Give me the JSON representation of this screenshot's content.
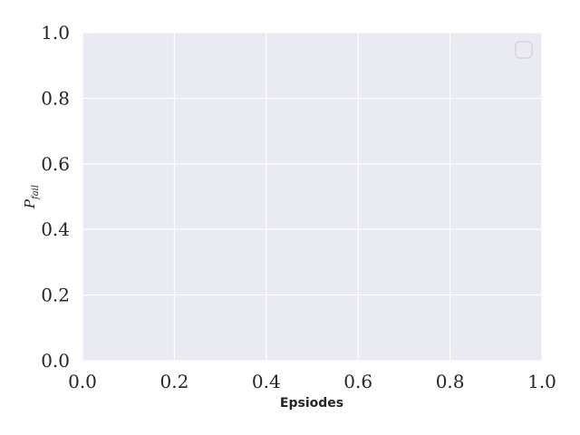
{
  "chart_data": {
    "type": "line",
    "title": "",
    "xlabel": "Epsiodes",
    "ylabel": {
      "base": "P",
      "subscript": "fail"
    },
    "xlim": [
      0.0,
      1.0
    ],
    "ylim": [
      0.0,
      1.0
    ],
    "xticks": [
      "0.0",
      "0.2",
      "0.4",
      "0.6",
      "0.8",
      "1.0"
    ],
    "yticks": [
      "0.0",
      "0.2",
      "0.4",
      "0.6",
      "0.8",
      "1.0"
    ],
    "series": [],
    "grid": true,
    "legend": {
      "placement": "top-right",
      "entries": []
    },
    "colors": {
      "plot_background": "#eaeaf2",
      "grid": "#ffffff",
      "text": "#262626"
    }
  }
}
